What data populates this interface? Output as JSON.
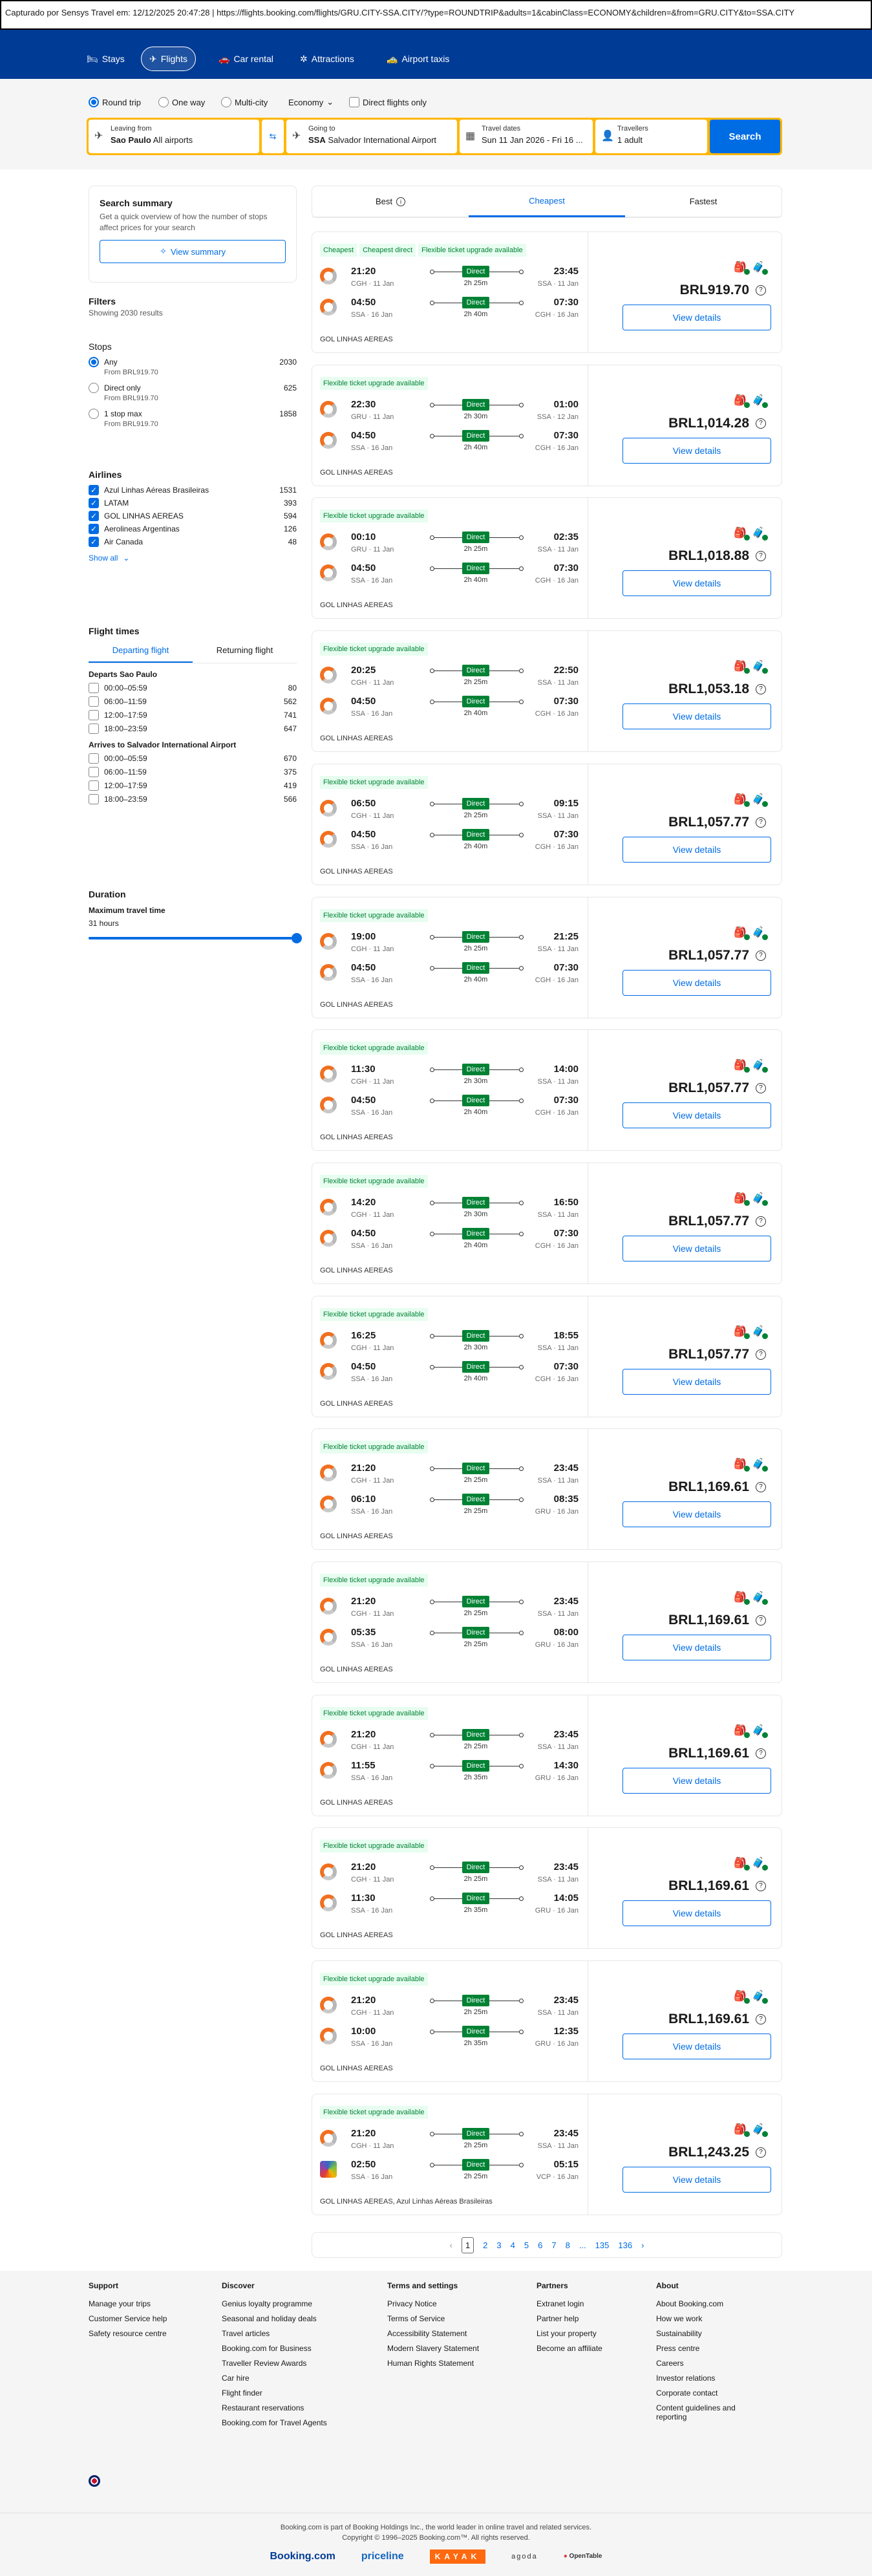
{
  "capture_bar": "Capturado por Sensys Travel em: 12/12/2025 20:47:28  |  https://flights.booking.com/flights/GRU.CITY-SSA.CITY/?type=ROUNDTRIP&adults=1&cabinClass=ECONOMY&children=&from=GRU.CITY&to=SSA.CITY",
  "nav": [
    {
      "label": "Stays",
      "icon": "bed-icon"
    },
    {
      "label": "Flights",
      "icon": "plane-icon",
      "active": true
    },
    {
      "label": "Car rental",
      "icon": "car-icon"
    },
    {
      "label": "Attractions",
      "icon": "attractions-icon"
    },
    {
      "label": "Airport taxis",
      "icon": "taxi-icon"
    }
  ],
  "search": {
    "trip_types": [
      "Round trip",
      "One way",
      "Multi-city"
    ],
    "cabin": "Economy",
    "direct_only": "Direct flights only",
    "from_label": "Leaving from",
    "from_code": "Sao Paulo",
    "from_name": "All airports",
    "to_label": "Going to",
    "to_code": "SSA",
    "to_name": "Salvador International Airport",
    "dates_label": "Travel dates",
    "dates": "Sun 11 Jan 2026 - Fri 16 ...",
    "travellers_label": "Travellers",
    "travellers": "1 adult",
    "button": "Search"
  },
  "summary": {
    "title": "Search summary",
    "text": "Get a quick overview of how the number of stops affect prices for your search",
    "button": "View summary"
  },
  "filters": {
    "title": "Filters",
    "showing": "Showing 2030 results",
    "stops_title": "Stops",
    "stops": [
      {
        "label": "Any",
        "sub": "From BRL919.70",
        "count": "2030",
        "selected": true
      },
      {
        "label": "Direct only",
        "sub": "From BRL919.70",
        "count": "625"
      },
      {
        "label": "1 stop max",
        "sub": "From BRL919.70",
        "count": "1858"
      }
    ],
    "airlines_title": "Airlines",
    "airlines": [
      {
        "label": "Azul Linhas Aéreas Brasileiras",
        "count": "1531"
      },
      {
        "label": "LATAM",
        "count": "393"
      },
      {
        "label": "GOL LINHAS AEREAS",
        "count": "594"
      },
      {
        "label": "Aerolineas Argentinas",
        "count": "126"
      },
      {
        "label": "Air Canada",
        "count": "48"
      }
    ],
    "show_all": "Show all",
    "times_title": "Flight times",
    "times_tabs": [
      "Departing flight",
      "Returning flight"
    ],
    "departs_title": "Departs Sao Paulo",
    "departs": [
      {
        "label": "00:00–05:59",
        "count": "80"
      },
      {
        "label": "06:00–11:59",
        "count": "562"
      },
      {
        "label": "12:00–17:59",
        "count": "741"
      },
      {
        "label": "18:00–23:59",
        "count": "647"
      }
    ],
    "arrives_title": "Arrives to Salvador International Airport",
    "arrives": [
      {
        "label": "00:00–05:59",
        "count": "670"
      },
      {
        "label": "06:00–11:59",
        "count": "375"
      },
      {
        "label": "12:00–17:59",
        "count": "419"
      },
      {
        "label": "18:00–23:59",
        "count": "566"
      }
    ],
    "duration_title": "Duration",
    "max_travel": "Maximum travel time",
    "max_value": "31 hours",
    "slider_fraction": 1.0
  },
  "sort_tabs": [
    {
      "label": "Best"
    },
    {
      "label": "Cheapest",
      "active": true
    },
    {
      "label": "Fastest"
    }
  ],
  "direct_label": "Direct",
  "view_details": "View details",
  "flights": [
    {
      "badges": [
        "Cheapest",
        "Cheapest direct",
        "Flexible ticket upgrade available"
      ],
      "out": [
        "21:20",
        "CGH · 11 Jan",
        "2h 25m",
        "23:45",
        "SSA · 11 Jan"
      ],
      "ret": [
        "04:50",
        "SSA · 16 Jan",
        "2h 40m",
        "07:30",
        "CGH · 16 Jan"
      ],
      "airline": "GOL LINHAS AEREAS",
      "price": "BRL919.70"
    },
    {
      "badges": [
        "Flexible ticket upgrade available"
      ],
      "out": [
        "22:30",
        "GRU · 11 Jan",
        "2h 30m",
        "01:00",
        "SSA · 12 Jan"
      ],
      "ret": [
        "04:50",
        "SSA · 16 Jan",
        "2h 40m",
        "07:30",
        "CGH · 16 Jan"
      ],
      "airline": "GOL LINHAS AEREAS",
      "price": "BRL1,014.28"
    },
    {
      "badges": [
        "Flexible ticket upgrade available"
      ],
      "out": [
        "00:10",
        "GRU · 11 Jan",
        "2h 25m",
        "02:35",
        "SSA · 11 Jan"
      ],
      "ret": [
        "04:50",
        "SSA · 16 Jan",
        "2h 40m",
        "07:30",
        "CGH · 16 Jan"
      ],
      "airline": "GOL LINHAS AEREAS",
      "price": "BRL1,018.88"
    },
    {
      "badges": [
        "Flexible ticket upgrade available"
      ],
      "out": [
        "20:25",
        "CGH · 11 Jan",
        "2h 25m",
        "22:50",
        "SSA · 11 Jan"
      ],
      "ret": [
        "04:50",
        "SSA · 16 Jan",
        "2h 40m",
        "07:30",
        "CGH · 16 Jan"
      ],
      "airline": "GOL LINHAS AEREAS",
      "price": "BRL1,053.18"
    },
    {
      "badges": [
        "Flexible ticket upgrade available"
      ],
      "out": [
        "06:50",
        "CGH · 11 Jan",
        "2h 25m",
        "09:15",
        "SSA · 11 Jan"
      ],
      "ret": [
        "04:50",
        "SSA · 16 Jan",
        "2h 40m",
        "07:30",
        "CGH · 16 Jan"
      ],
      "airline": "GOL LINHAS AEREAS",
      "price": "BRL1,057.77"
    },
    {
      "badges": [
        "Flexible ticket upgrade available"
      ],
      "out": [
        "19:00",
        "CGH · 11 Jan",
        "2h 25m",
        "21:25",
        "SSA · 11 Jan"
      ],
      "ret": [
        "04:50",
        "SSA · 16 Jan",
        "2h 40m",
        "07:30",
        "CGH · 16 Jan"
      ],
      "airline": "GOL LINHAS AEREAS",
      "price": "BRL1,057.77"
    },
    {
      "badges": [
        "Flexible ticket upgrade available"
      ],
      "out": [
        "11:30",
        "CGH · 11 Jan",
        "2h 30m",
        "14:00",
        "SSA · 11 Jan"
      ],
      "ret": [
        "04:50",
        "SSA · 16 Jan",
        "2h 40m",
        "07:30",
        "CGH · 16 Jan"
      ],
      "airline": "GOL LINHAS AEREAS",
      "price": "BRL1,057.77"
    },
    {
      "badges": [
        "Flexible ticket upgrade available"
      ],
      "out": [
        "14:20",
        "CGH · 11 Jan",
        "2h 30m",
        "16:50",
        "SSA · 11 Jan"
      ],
      "ret": [
        "04:50",
        "SSA · 16 Jan",
        "2h 40m",
        "07:30",
        "CGH · 16 Jan"
      ],
      "airline": "GOL LINHAS AEREAS",
      "price": "BRL1,057.77"
    },
    {
      "badges": [
        "Flexible ticket upgrade available"
      ],
      "out": [
        "16:25",
        "CGH · 11 Jan",
        "2h 30m",
        "18:55",
        "SSA · 11 Jan"
      ],
      "ret": [
        "04:50",
        "SSA · 16 Jan",
        "2h 40m",
        "07:30",
        "CGH · 16 Jan"
      ],
      "airline": "GOL LINHAS AEREAS",
      "price": "BRL1,057.77"
    },
    {
      "badges": [
        "Flexible ticket upgrade available"
      ],
      "out": [
        "21:20",
        "CGH · 11 Jan",
        "2h 25m",
        "23:45",
        "SSA · 11 Jan"
      ],
      "ret": [
        "06:10",
        "SSA · 16 Jan",
        "2h 25m",
        "08:35",
        "GRU · 16 Jan"
      ],
      "airline": "GOL LINHAS AEREAS",
      "price": "BRL1,169.61"
    },
    {
      "badges": [
        "Flexible ticket upgrade available"
      ],
      "out": [
        "21:20",
        "CGH · 11 Jan",
        "2h 25m",
        "23:45",
        "SSA · 11 Jan"
      ],
      "ret": [
        "05:35",
        "SSA · 16 Jan",
        "2h 25m",
        "08:00",
        "GRU · 16 Jan"
      ],
      "airline": "GOL LINHAS AEREAS",
      "price": "BRL1,169.61"
    },
    {
      "badges": [
        "Flexible ticket upgrade available"
      ],
      "out": [
        "21:20",
        "CGH · 11 Jan",
        "2h 25m",
        "23:45",
        "SSA · 11 Jan"
      ],
      "ret": [
        "11:55",
        "SSA · 16 Jan",
        "2h 35m",
        "14:30",
        "GRU · 16 Jan"
      ],
      "airline": "GOL LINHAS AEREAS",
      "price": "BRL1,169.61"
    },
    {
      "badges": [
        "Flexible ticket upgrade available"
      ],
      "out": [
        "21:20",
        "CGH · 11 Jan",
        "2h 25m",
        "23:45",
        "SSA · 11 Jan"
      ],
      "ret": [
        "11:30",
        "SSA · 16 Jan",
        "2h 35m",
        "14:05",
        "GRU · 16 Jan"
      ],
      "airline": "GOL LINHAS AEREAS",
      "price": "BRL1,169.61"
    },
    {
      "badges": [
        "Flexible ticket upgrade available"
      ],
      "out": [
        "21:20",
        "CGH · 11 Jan",
        "2h 25m",
        "23:45",
        "SSA · 11 Jan"
      ],
      "ret": [
        "10:00",
        "SSA · 16 Jan",
        "2h 35m",
        "12:35",
        "GRU · 16 Jan"
      ],
      "airline": "GOL LINHAS AEREAS",
      "price": "BRL1,169.61"
    },
    {
      "badges": [
        "Flexible ticket upgrade available"
      ],
      "out": [
        "21:20",
        "CGH · 11 Jan",
        "2h 25m",
        "23:45",
        "SSA · 11 Jan"
      ],
      "ret": [
        "02:50",
        "SSA · 16 Jan",
        "2h 25m",
        "05:15",
        "VCP · 16 Jan"
      ],
      "ret_logo": "azul",
      "airline": "GOL LINHAS AEREAS, Azul Linhas Aéreas Brasileiras",
      "price": "BRL1,243.25"
    }
  ],
  "pagination": {
    "pages": [
      "1",
      "2",
      "3",
      "4",
      "5",
      "6",
      "7",
      "8",
      "...",
      "135",
      "136"
    ],
    "current": "1"
  },
  "footer": {
    "columns": [
      {
        "title": "Support",
        "links": [
          "Manage your trips",
          "Customer Service help",
          "Safety resource centre"
        ]
      },
      {
        "title": "Discover",
        "links": [
          "Genius loyalty programme",
          "Seasonal and holiday deals",
          "Travel articles",
          "Booking.com for Business",
          "Traveller Review Awards",
          "Car hire",
          "Flight finder",
          "Restaurant reservations",
          "Booking.com for Travel Agents"
        ]
      },
      {
        "title": "Terms and settings",
        "links": [
          "Privacy Notice",
          "Terms of Service",
          "Accessibility Statement",
          "Modern Slavery Statement",
          "Human Rights Statement"
        ]
      },
      {
        "title": "Partners",
        "links": [
          "Extranet login",
          "Partner help",
          "List your property",
          "Become an affiliate"
        ]
      },
      {
        "title": "About",
        "links": [
          "About Booking.com",
          "How we work",
          "Sustainability",
          "Press centre",
          "Careers",
          "Investor relations",
          "Corporate contact",
          "Content guidelines and reporting"
        ]
      }
    ],
    "legal1": "Booking.com is part of Booking Holdings Inc., the world leader in online travel and related services.",
    "legal2": "Copyright © 1996–2025 Booking.com™. All rights reserved.",
    "brands": [
      "Booking.com",
      "priceline",
      "KAYAK",
      "agoda",
      "OpenTable"
    ]
  },
  "colors": {
    "brand_blue": "#003b95",
    "accent": "#006ce4",
    "search_border": "#ffb700",
    "direct_green": "#008234"
  }
}
